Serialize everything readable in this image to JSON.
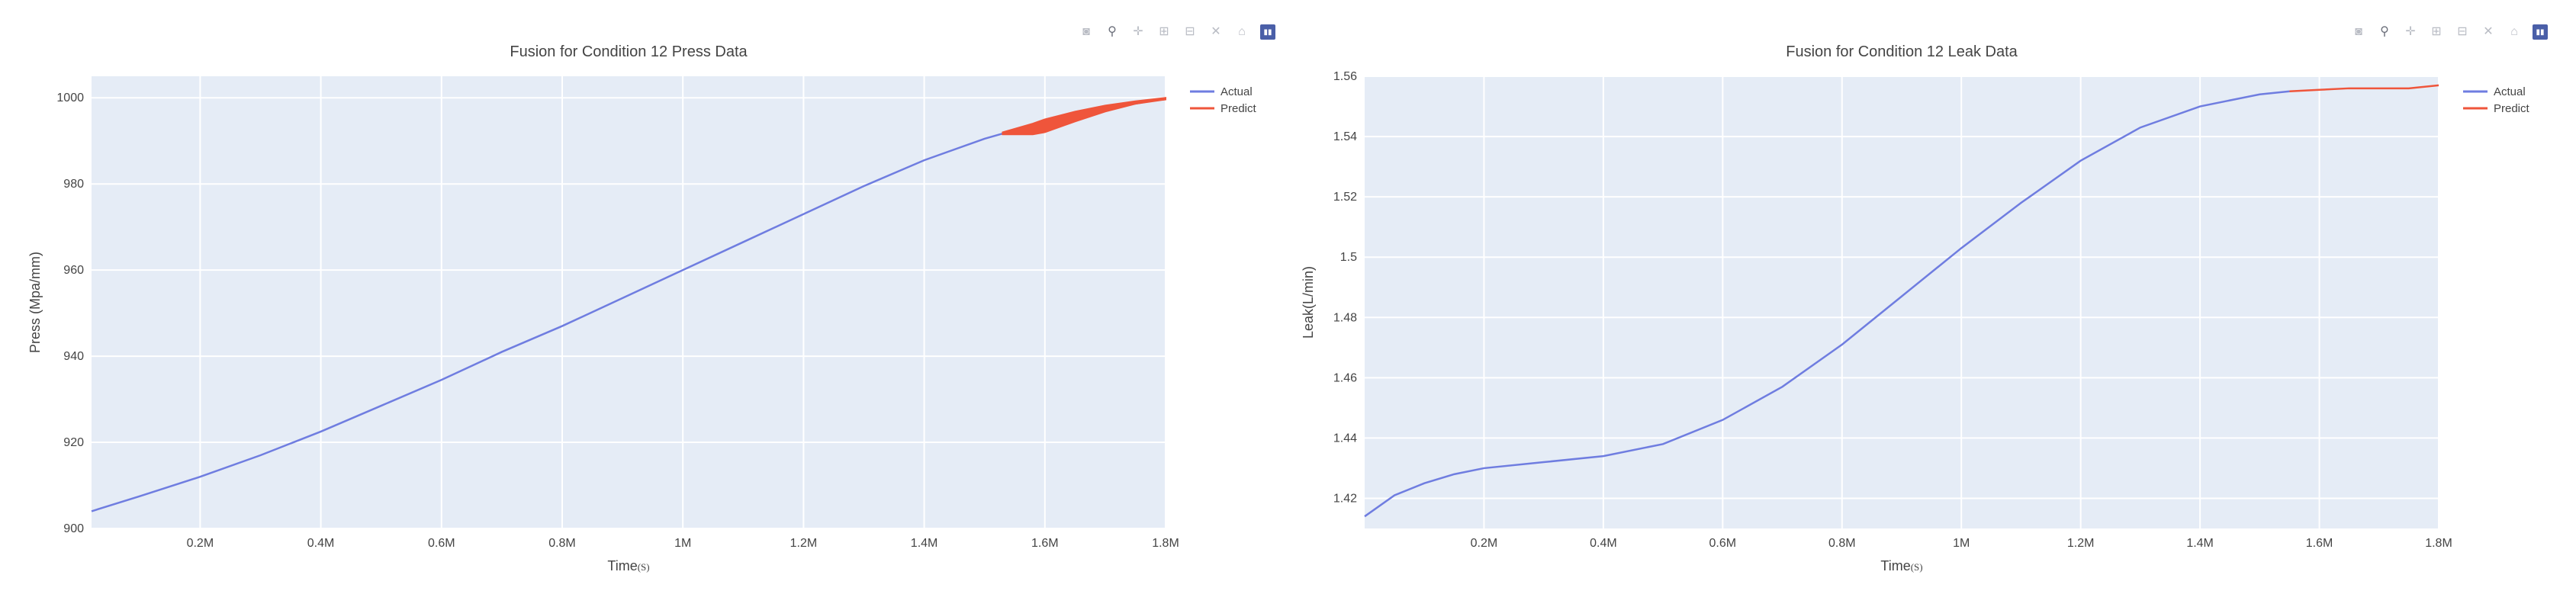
{
  "colors": {
    "actual": "#6f7de0",
    "predict": "#ef553b",
    "plot_bg": "#e5ecf6",
    "grid": "#ffffff",
    "text": "#444444"
  },
  "modebar_icons": [
    "camera-icon",
    "zoom-icon",
    "pan-icon",
    "zoom-in-icon",
    "zoom-out-icon",
    "autoscale-icon",
    "home-icon",
    "plotly-logo-icon"
  ],
  "chart_data": [
    {
      "type": "line",
      "title": "Fusion for Condition 12 Press Data",
      "xlabel": "Time",
      "xlabel_unit": "(S)",
      "ylabel": "Press (Mpa/mm)",
      "xlim": [
        20000,
        1800000
      ],
      "ylim": [
        900,
        1005
      ],
      "x_ticks": [
        200000,
        400000,
        600000,
        800000,
        1000000,
        1200000,
        1400000,
        1600000,
        1800000
      ],
      "x_tick_labels": [
        "0.2M",
        "0.4M",
        "0.6M",
        "0.8M",
        "1M",
        "1.2M",
        "1.4M",
        "1.6M",
        "1.8M"
      ],
      "y_ticks": [
        900,
        920,
        940,
        960,
        980,
        1000
      ],
      "y_tick_labels": [
        "900",
        "920",
        "940",
        "960",
        "980",
        "1000"
      ],
      "legend": {
        "position": "top-right",
        "entries": [
          "Actual",
          "Predict"
        ]
      },
      "grid": true,
      "series": [
        {
          "name": "Actual",
          "x": [
            20000,
            100000,
            200000,
            300000,
            400000,
            500000,
            600000,
            700000,
            800000,
            900000,
            1000000,
            1100000,
            1200000,
            1300000,
            1400000,
            1500000,
            1600000,
            1700000,
            1800000
          ],
          "y": [
            904,
            907.5,
            912,
            917,
            922.5,
            928.5,
            934.5,
            941,
            947,
            953.5,
            960,
            966.5,
            973,
            979.5,
            985.5,
            990.5,
            994.5,
            997.5,
            999.8
          ]
        },
        {
          "name": "Predict",
          "style": "band",
          "x": [
            1530000,
            1580000,
            1600000,
            1650000,
            1700000,
            1750000,
            1800000
          ],
          "upper": [
            992,
            994,
            995,
            996.8,
            998.2,
            999.2,
            1000
          ],
          "lower": [
            991.5,
            991.5,
            992,
            994.5,
            996.8,
            998.6,
            999.6
          ]
        }
      ]
    },
    {
      "type": "line",
      "title": "Fusion for Condition 12 Leak Data",
      "xlabel": "Time",
      "xlabel_unit": "(S)",
      "ylabel": "Leak(L/min)",
      "xlim": [
        0,
        1800000
      ],
      "ylim": [
        1.41,
        1.56
      ],
      "x_ticks": [
        200000,
        400000,
        600000,
        800000,
        1000000,
        1200000,
        1400000,
        1600000,
        1800000
      ],
      "x_tick_labels": [
        "0.2M",
        "0.4M",
        "0.6M",
        "0.8M",
        "1M",
        "1.2M",
        "1.4M",
        "1.6M",
        "1.8M"
      ],
      "y_ticks": [
        1.42,
        1.44,
        1.46,
        1.48,
        1.5,
        1.52,
        1.54,
        1.56
      ],
      "y_tick_labels": [
        "1.42",
        "1.44",
        "1.46",
        "1.48",
        "1.5",
        "1.52",
        "1.54",
        "1.56"
      ],
      "legend": {
        "position": "top-right",
        "entries": [
          "Actual",
          "Predict"
        ]
      },
      "grid": true,
      "series": [
        {
          "name": "Actual",
          "x": [
            0,
            50000,
            100000,
            150000,
            200000,
            300000,
            400000,
            500000,
            600000,
            700000,
            800000,
            900000,
            1000000,
            1100000,
            1200000,
            1300000,
            1400000,
            1500000,
            1550000
          ],
          "y": [
            1.414,
            1.421,
            1.425,
            1.428,
            1.43,
            1.432,
            1.434,
            1.438,
            1.446,
            1.457,
            1.471,
            1.487,
            1.503,
            1.518,
            1.532,
            1.543,
            1.55,
            1.554,
            1.555
          ]
        },
        {
          "name": "Predict",
          "x": [
            1550000,
            1600000,
            1650000,
            1700000,
            1750000,
            1800000
          ],
          "y": [
            1.555,
            1.5555,
            1.556,
            1.556,
            1.556,
            1.557
          ]
        }
      ]
    }
  ]
}
